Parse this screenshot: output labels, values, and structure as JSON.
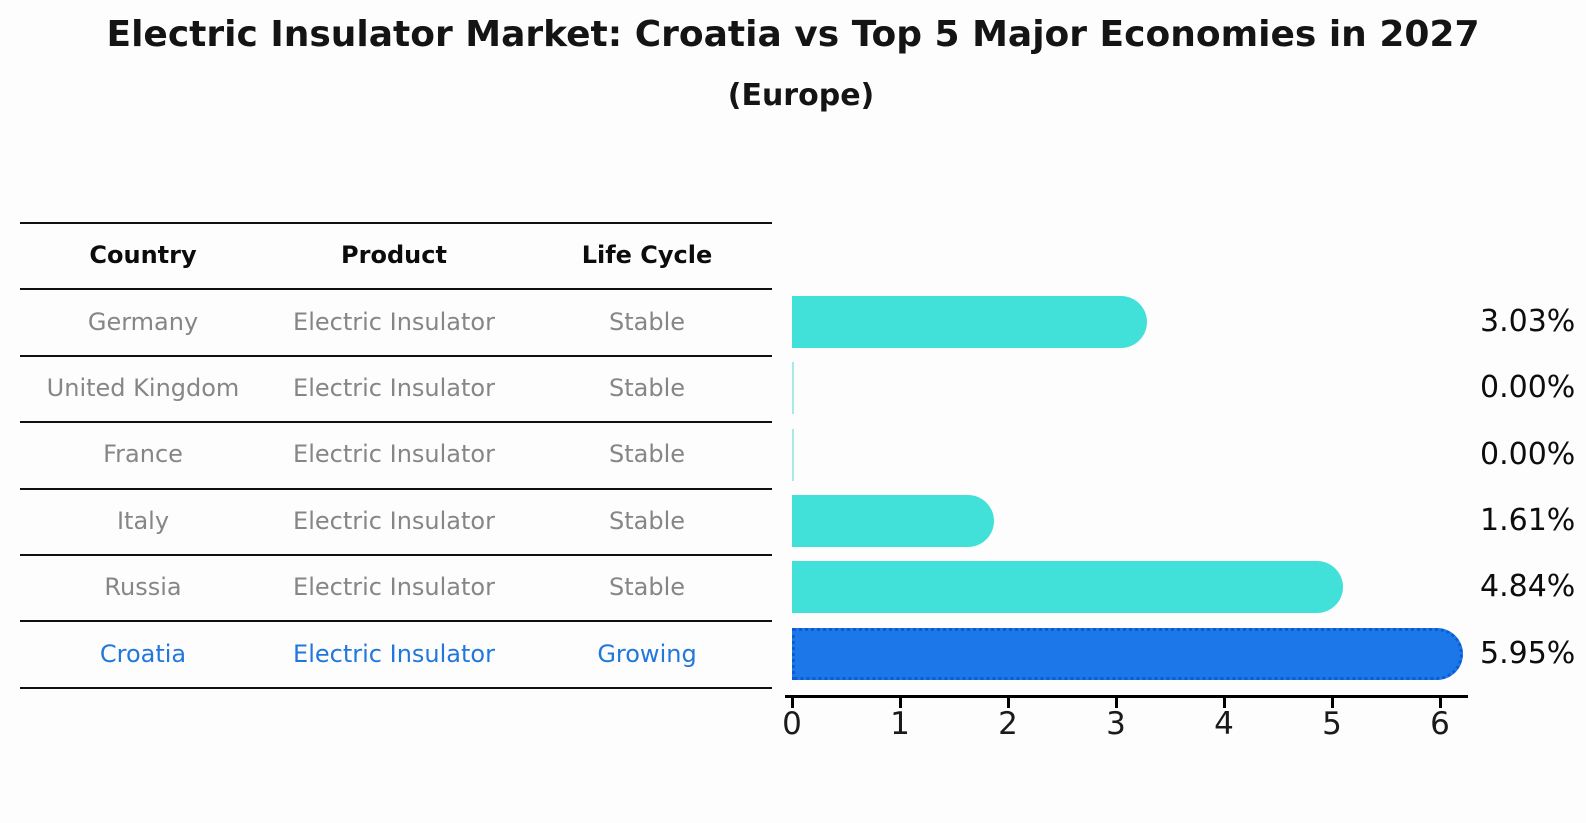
{
  "title": "Electric Insulator Market: Croatia vs Top 5 Major Economies in 2027",
  "subtitle": "(Europe)",
  "table": {
    "headers": [
      "Country",
      "Product",
      "Life Cycle"
    ],
    "rows": [
      {
        "country": "Germany",
        "product": "Electric Insulator",
        "life_cycle": "Stable"
      },
      {
        "country": "United Kingdom",
        "product": "Electric Insulator",
        "life_cycle": "Stable"
      },
      {
        "country": "France",
        "product": "Electric Insulator",
        "life_cycle": "Stable"
      },
      {
        "country": "Italy",
        "product": "Electric Insulator",
        "life_cycle": "Stable"
      },
      {
        "country": "Russia",
        "product": "Electric Insulator",
        "life_cycle": "Stable"
      },
      {
        "country": "Croatia",
        "product": "Electric Insulator",
        "life_cycle": "Growing"
      }
    ]
  },
  "chart_data": {
    "type": "bar",
    "orientation": "horizontal",
    "title": "Electric Insulator Market: Croatia vs Top 5 Major Economies in 2027",
    "subtitle": "(Europe)",
    "categories": [
      "Germany",
      "United Kingdom",
      "France",
      "Italy",
      "Russia",
      "Croatia"
    ],
    "values": [
      3.03,
      0.0,
      0.0,
      1.61,
      4.84,
      5.95
    ],
    "value_labels": [
      "3.03%",
      "0.00%",
      "0.00%",
      "1.61%",
      "4.84%",
      "5.95%"
    ],
    "x_ticks": [
      0,
      1,
      2,
      3,
      4,
      5,
      6
    ],
    "xlim": [
      0,
      6.25
    ],
    "xlabel": "",
    "ylabel": "",
    "grid": false,
    "legend": "none",
    "bar_color": "#41E1D9",
    "zero_bar_color": "#A6EBE7",
    "highlight_color": "#1C78E8",
    "highlight_border_color": "#0B5CD2",
    "highlight_index": 5,
    "highlight_style": "dotted-border"
  }
}
